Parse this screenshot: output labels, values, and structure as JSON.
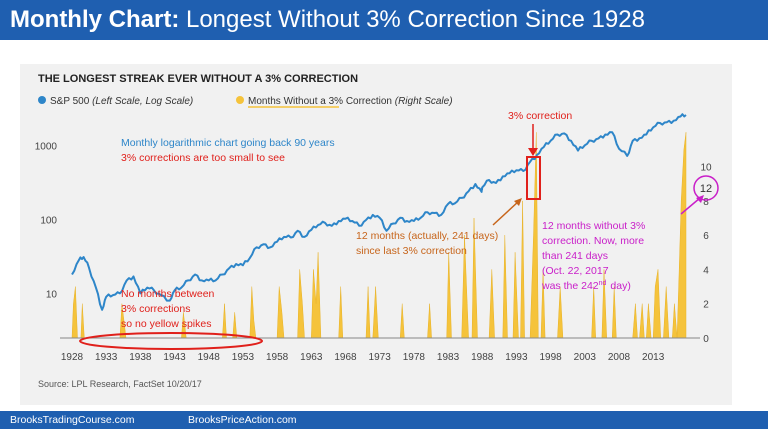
{
  "slide": {
    "title_bold": "Monthly Chart:",
    "title_rest": " Longest Without 3% Correction Since 1928",
    "footer_left": "BrooksTradingCourse.com",
    "footer_right": "BrooksPriceAction.com"
  },
  "chart_data": {
    "type": "line",
    "title": "THE LONGEST STREAK EVER WITHOUT A 3% CORRECTION",
    "source": "Source: LPL Research, FactSet  10/20/17",
    "legend": {
      "placement": "top-left",
      "items": [
        {
          "label": "S&P 500",
          "note": "(Left Scale, Log Scale)",
          "color": "#2e86c9"
        },
        {
          "label": "Months Without a 3% Correction",
          "note": "(Right Scale)",
          "color": "#f5c33b"
        }
      ]
    },
    "x_ticks": [
      "1928",
      "1933",
      "1938",
      "1943",
      "1948",
      "1953",
      "1958",
      "1963",
      "1968",
      "1973",
      "1978",
      "1983",
      "1988",
      "1993",
      "1998",
      "2003",
      "2008",
      "2013"
    ],
    "xlim": [
      1928,
      2017.8
    ],
    "left_axis": {
      "scale": "log",
      "ticks": [
        "10",
        "100",
        "1000"
      ],
      "ylim": [
        2.5,
        3000
      ]
    },
    "right_axis": {
      "ticks": [
        "0",
        "2",
        "4",
        "6",
        "8",
        "10",
        "12"
      ],
      "ylim": [
        0,
        13.3
      ]
    },
    "series": [
      {
        "name": "S&P 500",
        "axis": "left",
        "color": "#2e86c9",
        "points": [
          [
            1928,
            18
          ],
          [
            1929,
            28
          ],
          [
            1929.7,
            31
          ],
          [
            1930.5,
            22
          ],
          [
            1931.5,
            12
          ],
          [
            1932.4,
            6
          ],
          [
            1933,
            9
          ],
          [
            1934,
            9.5
          ],
          [
            1935,
            10
          ],
          [
            1936,
            15
          ],
          [
            1937,
            17
          ],
          [
            1938,
            10
          ],
          [
            1939,
            12
          ],
          [
            1940,
            11
          ],
          [
            1941,
            9.5
          ],
          [
            1942.3,
            8
          ],
          [
            1943,
            11
          ],
          [
            1944,
            12
          ],
          [
            1945,
            15
          ],
          [
            1946,
            18
          ],
          [
            1947,
            15
          ],
          [
            1948,
            15
          ],
          [
            1949,
            15
          ],
          [
            1950,
            18
          ],
          [
            1951,
            22
          ],
          [
            1952,
            25
          ],
          [
            1953,
            24
          ],
          [
            1954,
            30
          ],
          [
            1955,
            42
          ],
          [
            1956,
            46
          ],
          [
            1957,
            42
          ],
          [
            1958,
            50
          ],
          [
            1959,
            58
          ],
          [
            1960,
            57
          ],
          [
            1961,
            70
          ],
          [
            1962,
            58
          ],
          [
            1963,
            72
          ],
          [
            1964,
            84
          ],
          [
            1965,
            90
          ],
          [
            1966,
            82
          ],
          [
            1967,
            95
          ],
          [
            1968,
            102
          ],
          [
            1969,
            95
          ],
          [
            1970,
            82
          ],
          [
            1971,
            98
          ],
          [
            1972,
            115
          ],
          [
            1973,
            105
          ],
          [
            1974,
            70
          ],
          [
            1975,
            88
          ],
          [
            1976,
            105
          ],
          [
            1977,
            95
          ],
          [
            1978,
            95
          ],
          [
            1979,
            105
          ],
          [
            1980,
            125
          ],
          [
            1981,
            122
          ],
          [
            1982,
            115
          ],
          [
            1983,
            162
          ],
          [
            1984,
            165
          ],
          [
            1985,
            195
          ],
          [
            1986,
            240
          ],
          [
            1987,
            300
          ],
          [
            1987.9,
            235
          ],
          [
            1988,
            270
          ],
          [
            1989,
            340
          ],
          [
            1990,
            310
          ],
          [
            1991,
            380
          ],
          [
            1992,
            420
          ],
          [
            1993,
            460
          ],
          [
            1994,
            450
          ],
          [
            1995,
            600
          ],
          [
            1996,
            740
          ],
          [
            1997,
            950
          ],
          [
            1998,
            1150
          ],
          [
            1999,
            1400
          ],
          [
            2000,
            1450
          ],
          [
            2001,
            1150
          ],
          [
            2002,
            850
          ],
          [
            2003,
            1000
          ],
          [
            2004,
            1150
          ],
          [
            2005,
            1240
          ],
          [
            2006,
            1400
          ],
          [
            2007,
            1500
          ],
          [
            2008,
            900
          ],
          [
            2009.2,
            720
          ],
          [
            2010,
            1150
          ],
          [
            2011,
            1250
          ],
          [
            2012,
            1400
          ],
          [
            2013,
            1750
          ],
          [
            2014,
            2000
          ],
          [
            2015,
            2050
          ],
          [
            2016,
            2150
          ],
          [
            2017,
            2450
          ],
          [
            2017.8,
            2570
          ]
        ]
      },
      {
        "name": "Months Without a 3% Correction",
        "axis": "right",
        "color": "#f5c33b",
        "points": [
          [
            1928,
            0
          ],
          [
            1928.2,
            2
          ],
          [
            1928.5,
            3
          ],
          [
            1928.8,
            0
          ],
          [
            1929.3,
            0
          ],
          [
            1929.5,
            2
          ],
          [
            1929.8,
            0
          ],
          [
            1935,
            0
          ],
          [
            1935.3,
            2
          ],
          [
            1935.6,
            1
          ],
          [
            1935.9,
            0
          ],
          [
            1944,
            0
          ],
          [
            1944.3,
            1.5
          ],
          [
            1944.7,
            0
          ],
          [
            1950,
            0
          ],
          [
            1950.3,
            2
          ],
          [
            1950.6,
            0
          ],
          [
            1951.5,
            0
          ],
          [
            1951.8,
            1.5
          ],
          [
            1952.1,
            0
          ],
          [
            1954,
            0
          ],
          [
            1954.3,
            3
          ],
          [
            1954.6,
            1
          ],
          [
            1954.9,
            0
          ],
          [
            1958,
            0
          ],
          [
            1958.3,
            3
          ],
          [
            1958.7,
            1.5
          ],
          [
            1959,
            0
          ],
          [
            1961,
            0
          ],
          [
            1961.3,
            4
          ],
          [
            1961.7,
            2
          ],
          [
            1962,
            0
          ],
          [
            1963,
            0
          ],
          [
            1963.3,
            4
          ],
          [
            1963.7,
            2
          ],
          [
            1964,
            5
          ],
          [
            1964.4,
            0
          ],
          [
            1967,
            0
          ],
          [
            1967.3,
            3
          ],
          [
            1967.6,
            0
          ],
          [
            1971,
            0
          ],
          [
            1971.3,
            3
          ],
          [
            1971.6,
            0
          ],
          [
            1972,
            0
          ],
          [
            1972.4,
            3
          ],
          [
            1972.8,
            0
          ],
          [
            1976,
            0
          ],
          [
            1976.3,
            2
          ],
          [
            1976.6,
            0
          ],
          [
            1980,
            0
          ],
          [
            1980.3,
            2
          ],
          [
            1980.6,
            0
          ],
          [
            1982.8,
            0
          ],
          [
            1983.1,
            5
          ],
          [
            1983.5,
            0
          ],
          [
            1985,
            0
          ],
          [
            1985.4,
            6
          ],
          [
            1985.8,
            2
          ],
          [
            1986,
            0
          ],
          [
            1986.5,
            0
          ],
          [
            1986.8,
            7
          ],
          [
            1987.3,
            0
          ],
          [
            1989,
            0
          ],
          [
            1989.4,
            4
          ],
          [
            1989.8,
            0
          ],
          [
            1991,
            0
          ],
          [
            1991.3,
            6
          ],
          [
            1991.7,
            0
          ],
          [
            1992.5,
            0
          ],
          [
            1992.8,
            5
          ],
          [
            1993.3,
            0
          ],
          [
            1993.6,
            0
          ],
          [
            1993.9,
            8
          ],
          [
            1994.2,
            0
          ],
          [
            1995,
            0
          ],
          [
            1995.5,
            6
          ],
          [
            1995.9,
            12
          ],
          [
            1996.2,
            0
          ],
          [
            1996.6,
            0
          ],
          [
            1996.9,
            4
          ],
          [
            1997.2,
            0
          ],
          [
            1999,
            0
          ],
          [
            1999.4,
            3
          ],
          [
            1999.8,
            0
          ],
          [
            2004,
            0
          ],
          [
            2004.3,
            3
          ],
          [
            2004.6,
            0
          ],
          [
            2005.5,
            0
          ],
          [
            2005.8,
            4
          ],
          [
            2006.2,
            0
          ],
          [
            2007,
            0
          ],
          [
            2007.3,
            3
          ],
          [
            2007.6,
            0
          ],
          [
            2010,
            0
          ],
          [
            2010.4,
            2
          ],
          [
            2010.7,
            0
          ],
          [
            2011,
            0
          ],
          [
            2011.4,
            2
          ],
          [
            2011.7,
            0
          ],
          [
            2012,
            0
          ],
          [
            2012.3,
            2
          ],
          [
            2012.7,
            0
          ],
          [
            2013,
            0
          ],
          [
            2013.3,
            3
          ],
          [
            2013.7,
            4
          ],
          [
            2014.1,
            0
          ],
          [
            2014.5,
            0
          ],
          [
            2014.9,
            3
          ],
          [
            2015.3,
            0
          ],
          [
            2015.8,
            0
          ],
          [
            2016.1,
            2
          ],
          [
            2016.5,
            0
          ],
          [
            2016.8,
            4
          ],
          [
            2017.1,
            8
          ],
          [
            2017.5,
            11
          ],
          [
            2017.8,
            12
          ]
        ]
      }
    ],
    "annotations": [
      {
        "text": "Monthly logarithmic chart going back 90 years",
        "color": "#2e86c9"
      },
      {
        "text": "3% corrections are too small to see",
        "color": "#e0201b"
      },
      {
        "text": "3% correction",
        "color": "#e0201b"
      },
      {
        "text": "12 months (actually, 241 days)",
        "color": "#c7651b"
      },
      {
        "text": "since last 3% correction",
        "color": "#c7651b"
      },
      {
        "text": "12 months without 3%",
        "color": "#c91fc9"
      },
      {
        "text": "correction. Now, more",
        "color": "#c91fc9"
      },
      {
        "text": "than 241 days",
        "color": "#c91fc9"
      },
      {
        "text": "(Oct. 22, 2017",
        "color": "#c91fc9"
      },
      {
        "text": "was the 242",
        "color": "#c91fc9"
      },
      {
        "text": "nd",
        "color": "#c91fc9"
      },
      {
        "text": "day)",
        "color": "#c91fc9"
      },
      {
        "text": "No months between",
        "color": "#e0201b"
      },
      {
        "text": "3% corrections",
        "color": "#e0201b"
      },
      {
        "text": "so no yellow spikes",
        "color": "#e0201b"
      },
      {
        "text": "12",
        "color": "#333333"
      }
    ]
  }
}
